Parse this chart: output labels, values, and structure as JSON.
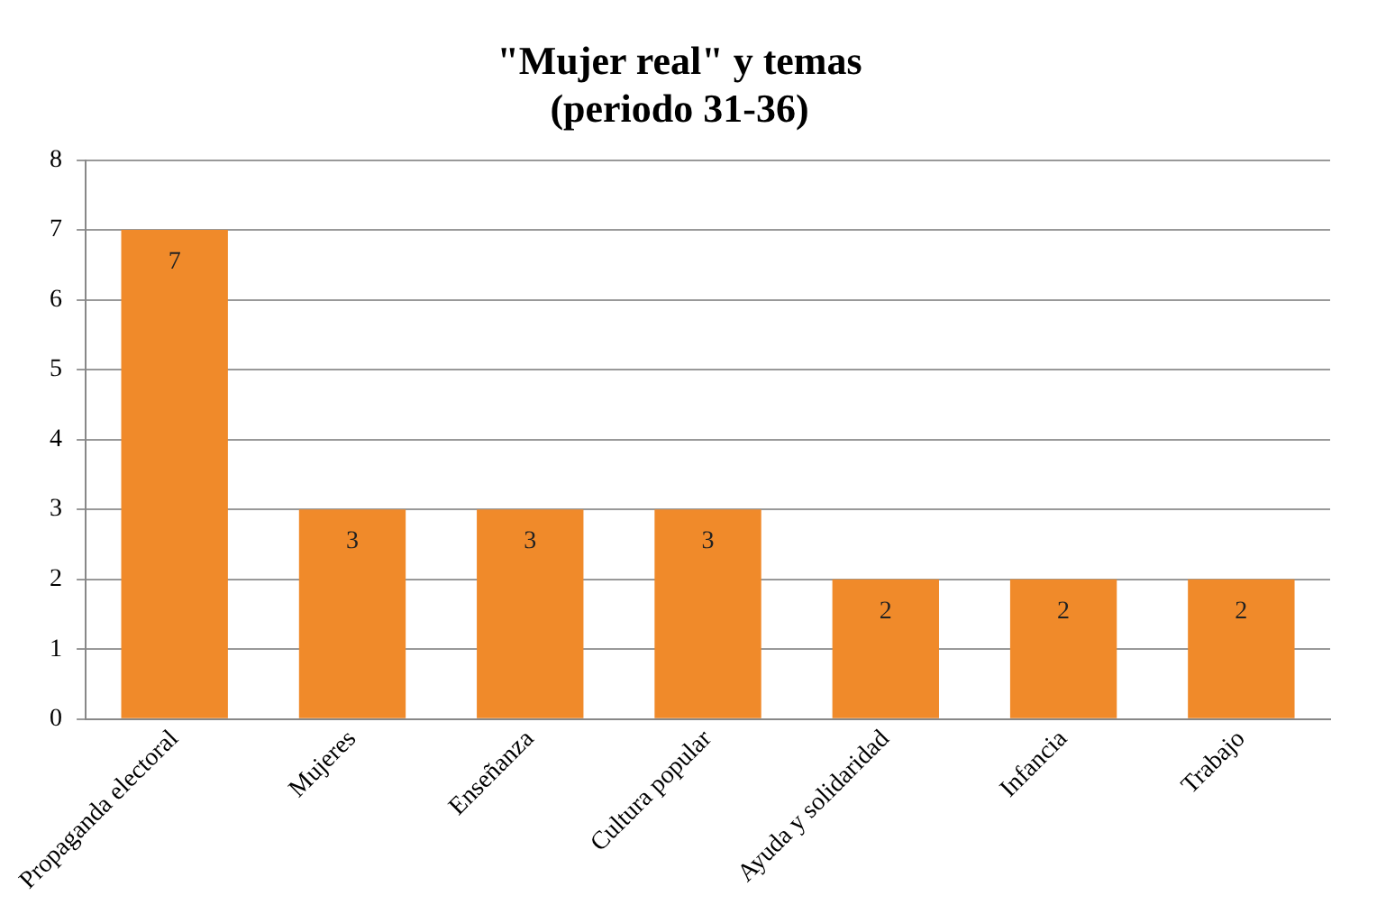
{
  "chart_data": {
    "type": "bar",
    "title": "\"Mujer real\" y temas\n(periodo 31-36)",
    "categories": [
      "Propaganda electoral",
      "Mujeres",
      "Enseñanza",
      "Cultura popular",
      "Ayuda y solidaridad",
      "Infancia",
      "Trabajo"
    ],
    "values": [
      7,
      3,
      3,
      3,
      2,
      2,
      2
    ],
    "color": "#f08a2a",
    "ylim": [
      0,
      8
    ],
    "yticks": [
      0,
      1,
      2,
      3,
      4,
      5,
      6,
      7,
      8
    ],
    "grid": "y",
    "data_labels": true,
    "legend": false
  }
}
